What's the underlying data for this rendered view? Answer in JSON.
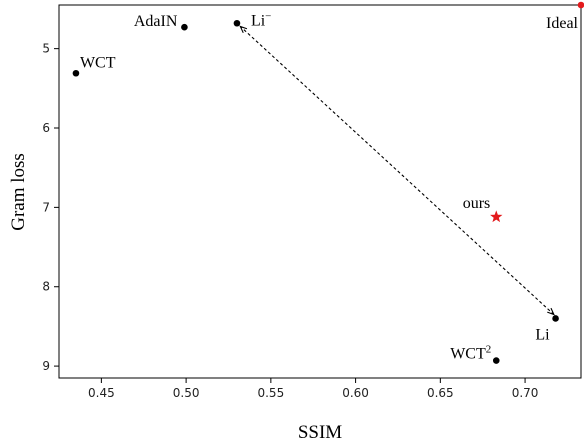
{
  "chart_data": {
    "type": "scatter",
    "xlabel": "SSIM",
    "ylabel": "Gram loss",
    "xlim": [
      0.425,
      0.733
    ],
    "ylim": [
      4.45,
      9.15
    ],
    "y_inverted": true,
    "grid": false,
    "xticks": [
      0.45,
      0.5,
      0.55,
      0.6,
      0.65,
      0.7
    ],
    "xtick_labels": [
      "0.45",
      "0.50",
      "0.55",
      "0.60",
      "0.65",
      "0.70"
    ],
    "yticks": [
      5,
      6,
      7,
      8,
      9
    ],
    "ytick_labels": [
      "5",
      "6",
      "7",
      "8",
      "9"
    ],
    "points": [
      {
        "label": "WCT",
        "x": 0.435,
        "y": 5.31,
        "marker": "circle",
        "color": "#000000"
      },
      {
        "label": "AdaIN",
        "x": 0.499,
        "y": 4.73,
        "marker": "circle",
        "color": "#000000"
      },
      {
        "label": "Li",
        "label_sup": "−",
        "x": 0.53,
        "y": 4.68,
        "marker": "circle",
        "color": "#000000"
      },
      {
        "label": "ours",
        "x": 0.683,
        "y": 7.12,
        "marker": "star",
        "color": "#e31a1c"
      },
      {
        "label": "Li",
        "x": 0.718,
        "y": 8.4,
        "marker": "circle",
        "color": "#000000"
      },
      {
        "label": "WCT",
        "label_sup": "2",
        "x": 0.683,
        "y": 8.93,
        "marker": "circle",
        "color": "#000000"
      },
      {
        "label": "Ideal",
        "x": 0.733,
        "y": 4.45,
        "marker": "circle",
        "color": "#e31a1c"
      }
    ],
    "arrow": {
      "from": {
        "x": 0.717,
        "y": 8.35
      },
      "to": {
        "x": 0.532,
        "y": 4.72
      },
      "style": "dashed",
      "heads": "both",
      "color": "#000000"
    }
  }
}
